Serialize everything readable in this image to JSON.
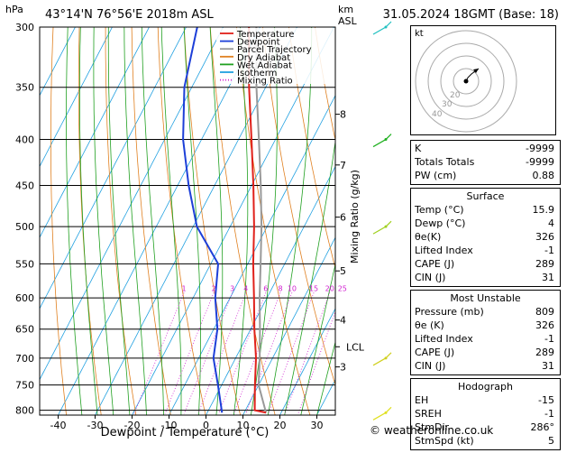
{
  "header": {
    "location": "43°14'N  76°56'E  2018m  ASL",
    "datetime": "31.05.2024  18GMT  (Base: 18)",
    "left_unit": "hPa",
    "right_unit_km": "km",
    "right_unit_asl": "ASL"
  },
  "chart_data": {
    "type": "skew-t",
    "xlabel": "Dewpoint / Temperature (°C)",
    "ylabel_right": "Mixing Ratio (g/kg)",
    "pressure_levels": [
      300,
      350,
      400,
      450,
      500,
      550,
      600,
      650,
      700,
      750,
      800
    ],
    "pressure_range": [
      300,
      810
    ],
    "temperature_ticks": [
      -40,
      -30,
      -20,
      -10,
      0,
      10,
      20,
      30
    ],
    "temperature_range": [
      -45,
      35
    ],
    "skew_degC_per_log_p": 55,
    "height_km_labels": [
      {
        "label": "8",
        "p": 375
      },
      {
        "label": "7",
        "p": 427
      },
      {
        "label": "6",
        "p": 488
      },
      {
        "label": "5",
        "p": 560
      },
      {
        "label": "4",
        "p": 635
      },
      {
        "label": "LCL",
        "p": 680
      },
      {
        "label": "3",
        "p": 716
      }
    ],
    "mixing_ratio_labels": [
      "1",
      "2",
      "3",
      "4",
      "6",
      "8",
      "10",
      "15",
      "20",
      "25"
    ],
    "mixing_ratio_values": [
      1,
      2,
      3,
      4,
      6,
      8,
      10,
      15,
      20,
      25
    ],
    "mixing_ratio_label_p": 592,
    "legend": [
      {
        "label": "Temperature",
        "color": "#e0201a",
        "style": "solid"
      },
      {
        "label": "Dewpoint",
        "color": "#1d3fd8",
        "style": "solid"
      },
      {
        "label": "Parcel Trajectory",
        "color": "#999999",
        "style": "solid"
      },
      {
        "label": "Dry Adiabat",
        "color": "#e08020",
        "style": "solid"
      },
      {
        "label": "Wet Adiabat",
        "color": "#20a020",
        "style": "solid"
      },
      {
        "label": "Isotherm",
        "color": "#20a0e0",
        "style": "solid"
      },
      {
        "label": "Mixing Ratio",
        "color": "#d020d0",
        "style": "dotted"
      }
    ],
    "temperature_profile": [
      {
        "p": 805,
        "t": 15.9
      },
      {
        "p": 800,
        "t": 12.5
      },
      {
        "p": 750,
        "t": 9.0
      },
      {
        "p": 700,
        "t": 5.5
      },
      {
        "p": 650,
        "t": 1.0
      },
      {
        "p": 600,
        "t": -3.5
      },
      {
        "p": 550,
        "t": -8.5
      },
      {
        "p": 500,
        "t": -13.5
      },
      {
        "p": 450,
        "t": -19.5
      },
      {
        "p": 400,
        "t": -26.5
      },
      {
        "p": 350,
        "t": -34.5
      },
      {
        "p": 300,
        "t": -43.0
      }
    ],
    "dewpoint_profile": [
      {
        "p": 805,
        "t": 4.0
      },
      {
        "p": 750,
        "t": -1.0
      },
      {
        "p": 700,
        "t": -6.0
      },
      {
        "p": 650,
        "t": -9.0
      },
      {
        "p": 600,
        "t": -14.0
      },
      {
        "p": 550,
        "t": -18.0
      },
      {
        "p": 500,
        "t": -29.0
      },
      {
        "p": 450,
        "t": -37.0
      },
      {
        "p": 400,
        "t": -45.0
      },
      {
        "p": 350,
        "t": -52.0
      },
      {
        "p": 300,
        "t": -57.0
      }
    ],
    "parcel_profile": [
      {
        "p": 805,
        "t": 15.9
      },
      {
        "p": 750,
        "t": 10.0
      },
      {
        "p": 700,
        "t": 6.5
      },
      {
        "p": 650,
        "t": 2.5
      },
      {
        "p": 600,
        "t": -2.0
      },
      {
        "p": 550,
        "t": -6.5
      },
      {
        "p": 500,
        "t": -11.5
      },
      {
        "p": 450,
        "t": -17.5
      },
      {
        "p": 400,
        "t": -24.5
      },
      {
        "p": 350,
        "t": -32.5
      },
      {
        "p": 300,
        "t": -41.0
      }
    ]
  },
  "wind_barb_colors": [
    "#20c0c0",
    "#20b020",
    "#a0d020",
    "#d0d020",
    "#e0e020"
  ],
  "hodograph": {
    "label": "kt",
    "ring_labels": [
      "40",
      "30",
      "20",
      "10"
    ]
  },
  "indices": [
    {
      "label": "K",
      "value": "-9999"
    },
    {
      "label": "Totals Totals",
      "value": "-9999"
    },
    {
      "label": "PW (cm)",
      "value": "0.88"
    }
  ],
  "surface": {
    "title": "Surface",
    "rows": [
      {
        "label": "Temp (°C)",
        "value": "15.9"
      },
      {
        "label": "Dewp (°C)",
        "value": "4"
      },
      {
        "label": "θe(K)",
        "value": "326"
      },
      {
        "label": "Lifted Index",
        "value": "-1"
      },
      {
        "label": "CAPE (J)",
        "value": "289"
      },
      {
        "label": "CIN (J)",
        "value": "31"
      }
    ]
  },
  "most_unstable": {
    "title": "Most Unstable",
    "rows": [
      {
        "label": "Pressure (mb)",
        "value": "809"
      },
      {
        "label": "θe (K)",
        "value": "326"
      },
      {
        "label": "Lifted Index",
        "value": "-1"
      },
      {
        "label": "CAPE (J)",
        "value": "289"
      },
      {
        "label": "CIN (J)",
        "value": "31"
      }
    ]
  },
  "hodograph_table": {
    "title": "Hodograph",
    "rows": [
      {
        "label": "EH",
        "value": "-15"
      },
      {
        "label": "SREH",
        "value": "-1"
      },
      {
        "label": "StmDir",
        "value": "286°"
      },
      {
        "label": "StmSpd (kt)",
        "value": "5"
      }
    ]
  },
  "footer": "© weatheronline.co.uk"
}
